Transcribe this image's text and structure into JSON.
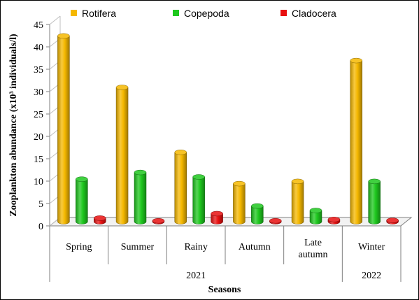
{
  "chart_data": {
    "type": "bar",
    "categories": [
      "Spring",
      "Summer",
      "Rainy",
      "Autumn",
      "Late autumn",
      "Winter"
    ],
    "category_lines": [
      [
        "Spring"
      ],
      [
        "Summer"
      ],
      [
        "Rainy"
      ],
      [
        "Autumn"
      ],
      [
        "Late",
        "autumn"
      ],
      [
        "Winter"
      ]
    ],
    "groups": [
      {
        "label": "2021",
        "categories": [
          "Spring",
          "Summer",
          "Rainy",
          "Autumn",
          "Late autumn"
        ]
      },
      {
        "label": "2022",
        "categories": [
          "Winter"
        ]
      }
    ],
    "series": [
      {
        "name": "Rotifera",
        "color": "#f5b800",
        "values": [
          41.5,
          30,
          15.5,
          8.5,
          9,
          36
        ]
      },
      {
        "name": "Copepoda",
        "color": "#1ec81e",
        "values": [
          9.5,
          11,
          10,
          3.5,
          2.5,
          9
        ]
      },
      {
        "name": "Cladocera",
        "color": "#e81010",
        "values": [
          0.8,
          0.2,
          1.8,
          0.2,
          0.5,
          0.3
        ]
      }
    ],
    "ylim": [
      0,
      45
    ],
    "yticks": [
      0,
      5,
      10,
      15,
      20,
      25,
      30,
      35,
      40,
      45
    ],
    "ylabel": "Zooplankton  abundance (x10³ individuals/l)",
    "xlabel": "Seasons",
    "legend_position": "top",
    "grid": false,
    "style": "3d-cylinder"
  }
}
